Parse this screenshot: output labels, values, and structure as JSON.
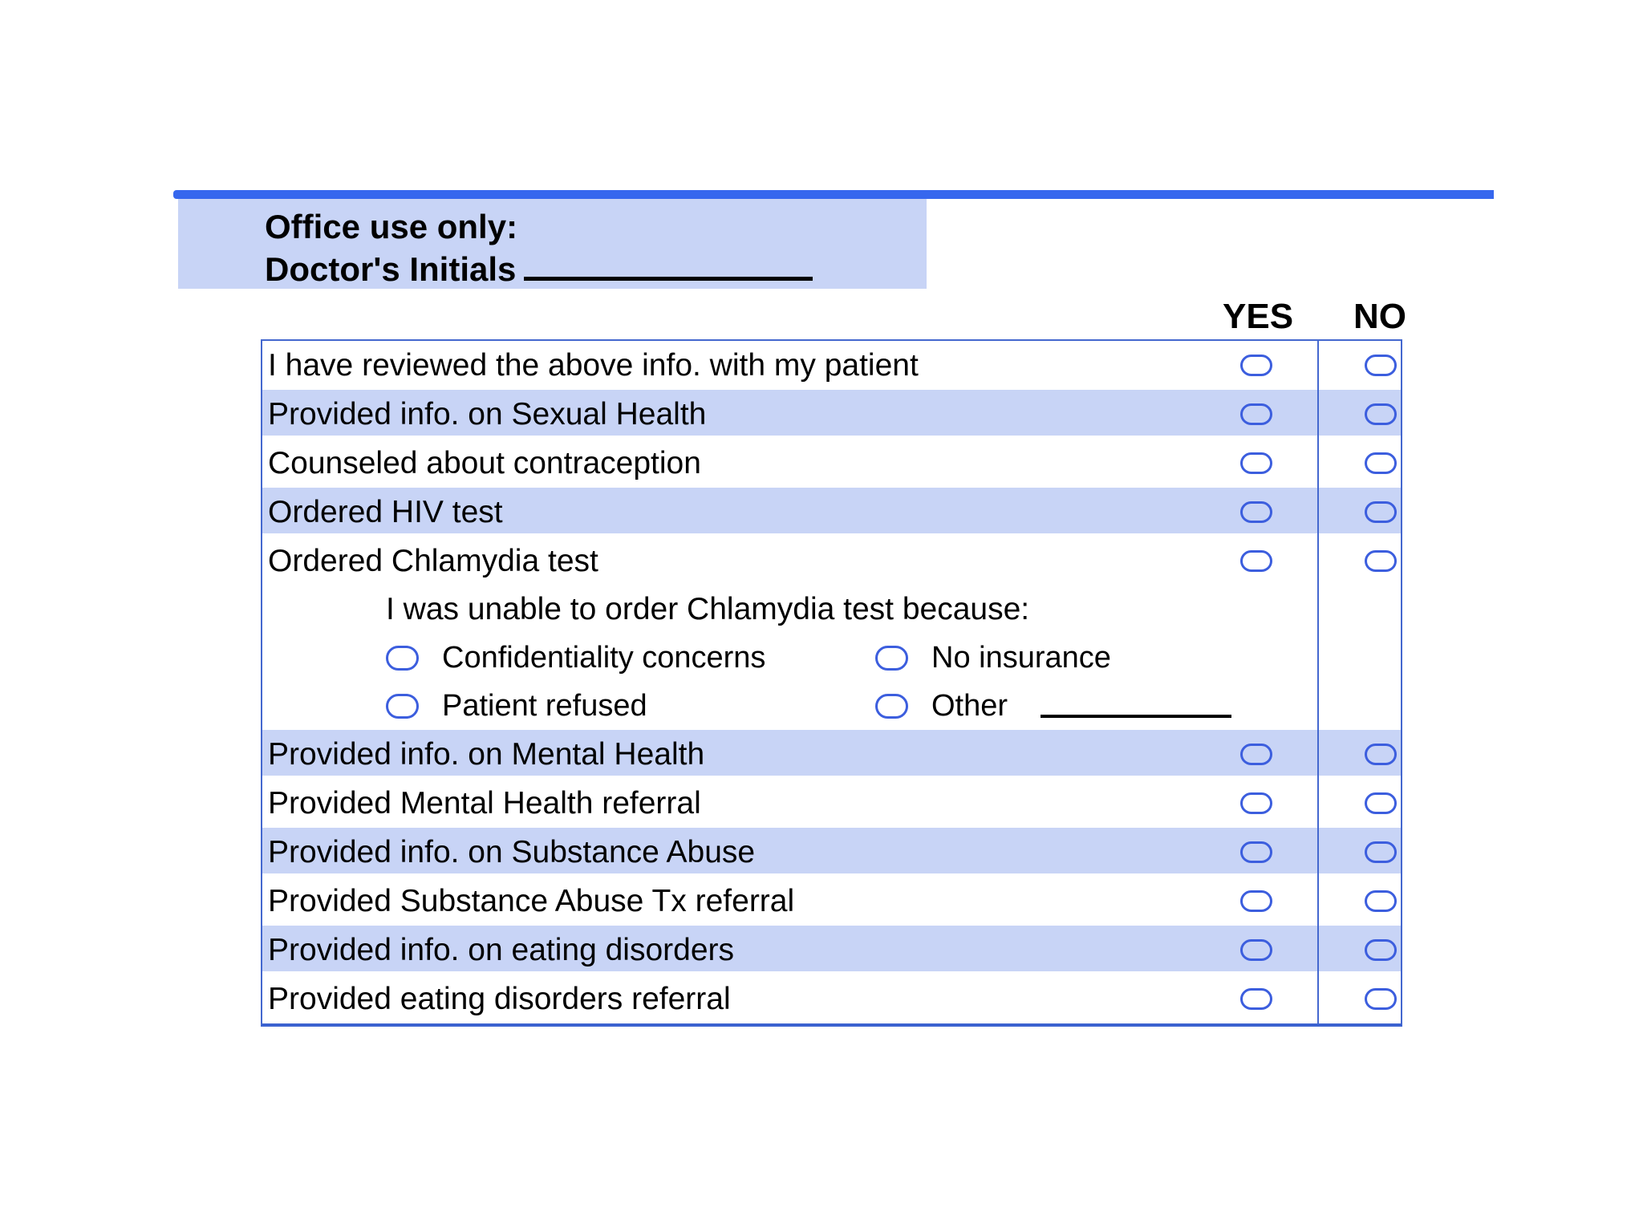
{
  "office": {
    "title": "Office use only:",
    "initials_label": "Doctor's Initials"
  },
  "header": {
    "yes": "YES",
    "no": "NO"
  },
  "checklist": {
    "rows": [
      {
        "label": "I have reviewed the above info. with my patient"
      },
      {
        "label": "Provided info. on Sexual Health"
      },
      {
        "label": "Counseled about contraception"
      },
      {
        "label": "Ordered HIV test"
      },
      {
        "label": "Ordered Chlamydia test"
      },
      {
        "label": "Provided info. on Mental Health"
      },
      {
        "label": "Provided Mental Health referral"
      },
      {
        "label": "Provided info. on Substance Abuse"
      },
      {
        "label": "Provided Substance Abuse Tx referral"
      },
      {
        "label": "Provided info. on eating disorders"
      },
      {
        "label": "Provided eating disorders referral"
      }
    ],
    "chlamydia_followup": {
      "header": "I was unable to order Chlamydia test because:",
      "options": [
        "Confidentiality concerns",
        "No insurance",
        "Patient refused",
        "Other"
      ]
    }
  },
  "colors": {
    "accent_bar": "#3667ee",
    "row_highlight": "#c8d4f6",
    "table_border": "#4468cf",
    "radio_border": "#3c5ede"
  }
}
